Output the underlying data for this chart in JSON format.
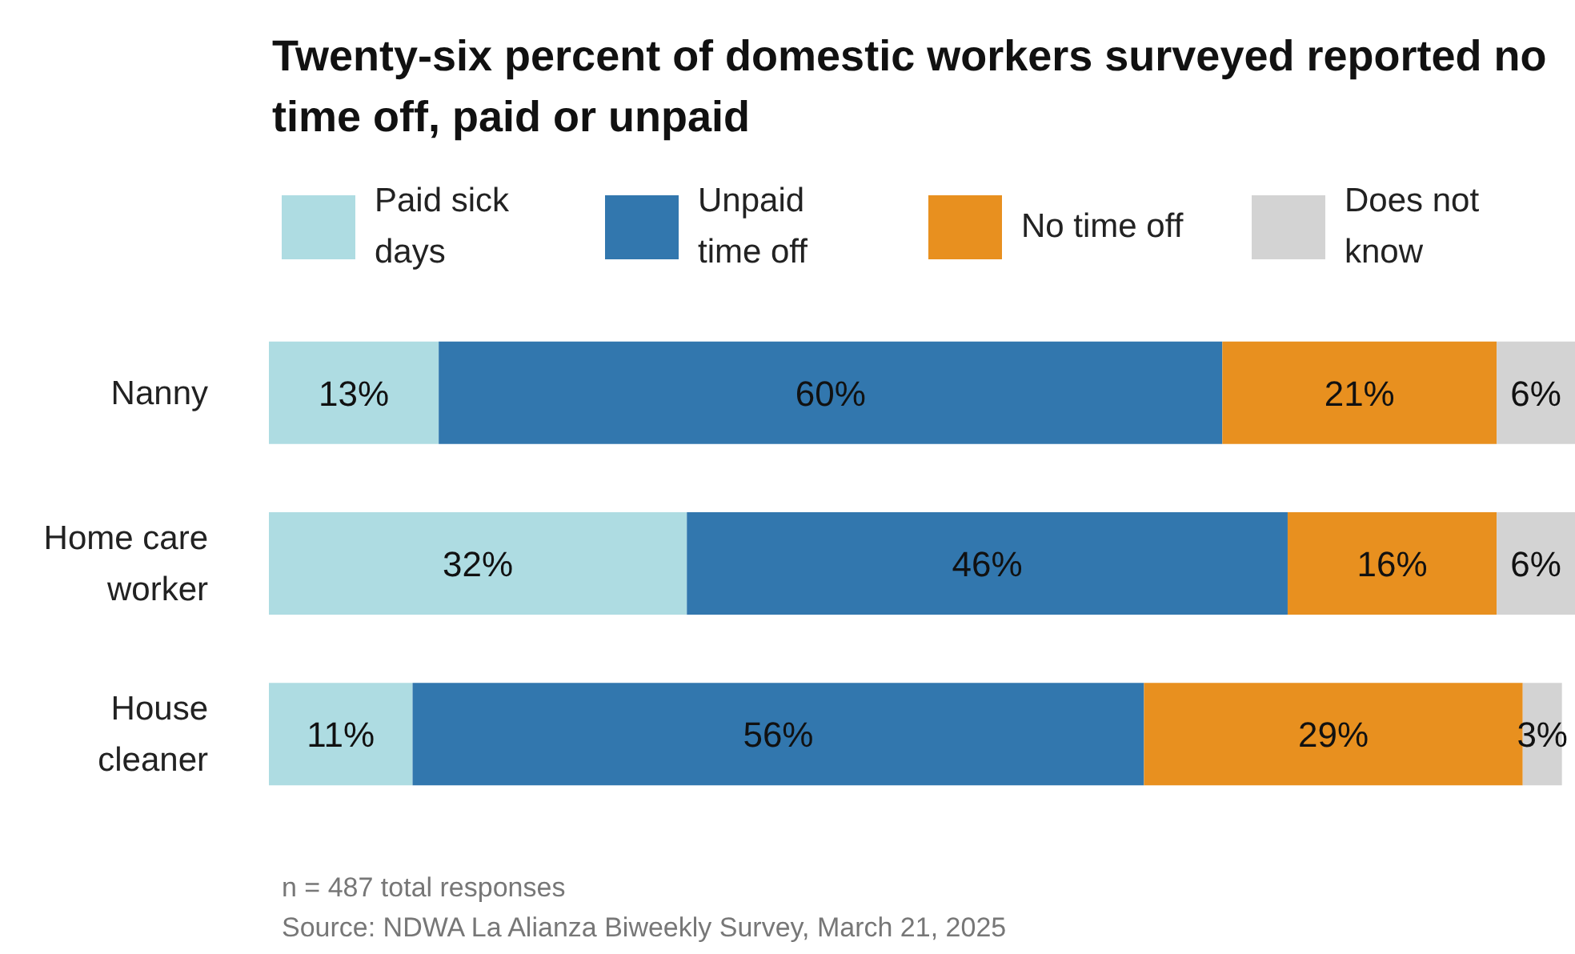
{
  "chart_data": {
    "type": "bar",
    "orientation": "horizontal",
    "stacked": true,
    "title": "Twenty-six percent of domestic workers surveyed reported no time off, paid or unpaid",
    "categories": [
      "Nanny",
      "Home care worker",
      "House cleaner"
    ],
    "series": [
      {
        "name": "Paid sick days",
        "color": "#aedce2",
        "values": [
          13,
          32,
          11
        ],
        "value_labels": [
          "13%",
          "32%",
          "11%"
        ]
      },
      {
        "name": "Unpaid time off",
        "color": "#3277ae",
        "values": [
          60,
          46,
          56
        ],
        "value_labels": [
          "60%",
          "46%",
          "56%"
        ]
      },
      {
        "name": "No time off",
        "color": "#e8901f",
        "values": [
          21,
          16,
          29
        ],
        "value_labels": [
          "21%",
          "16%",
          "29%"
        ]
      },
      {
        "name": "Does not know",
        "color": "#d3d3d3",
        "values": [
          6,
          6,
          3
        ],
        "value_labels": [
          "6%",
          "6%",
          "3%"
        ]
      }
    ],
    "legend": "top",
    "grid": false,
    "annotations": [
      "n = 487 total responses",
      "Source: NDWA La Alianza Biweekly Survey, March 21, 2025"
    ]
  }
}
